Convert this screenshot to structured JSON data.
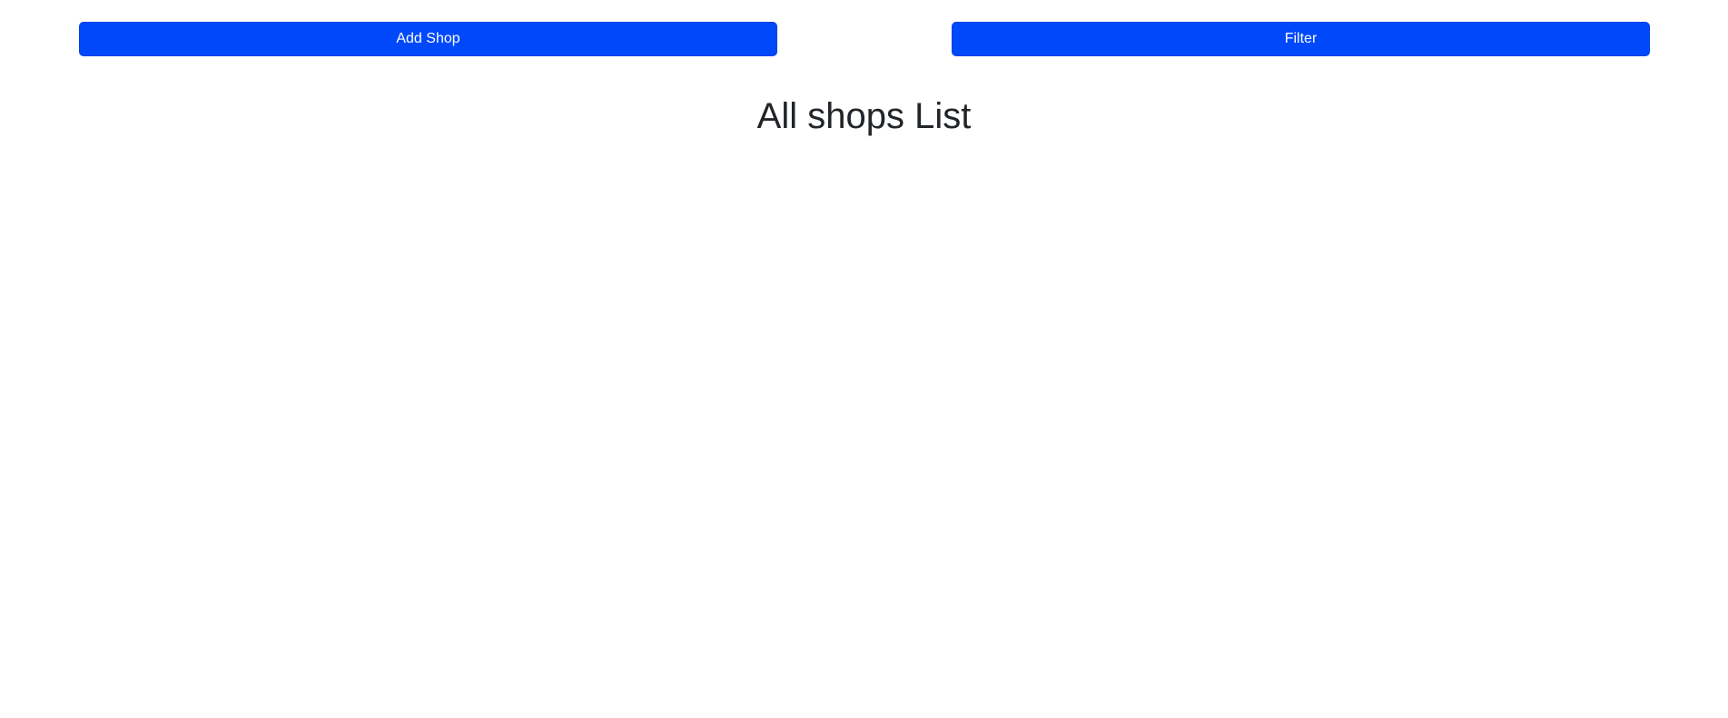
{
  "toolbar": {
    "add_shop_label": "Add Shop",
    "filter_label": "Filter"
  },
  "main": {
    "title": "All shops List"
  },
  "colors": {
    "primary_button": "#0049fb",
    "text": "#212529",
    "background": "#ffffff"
  }
}
